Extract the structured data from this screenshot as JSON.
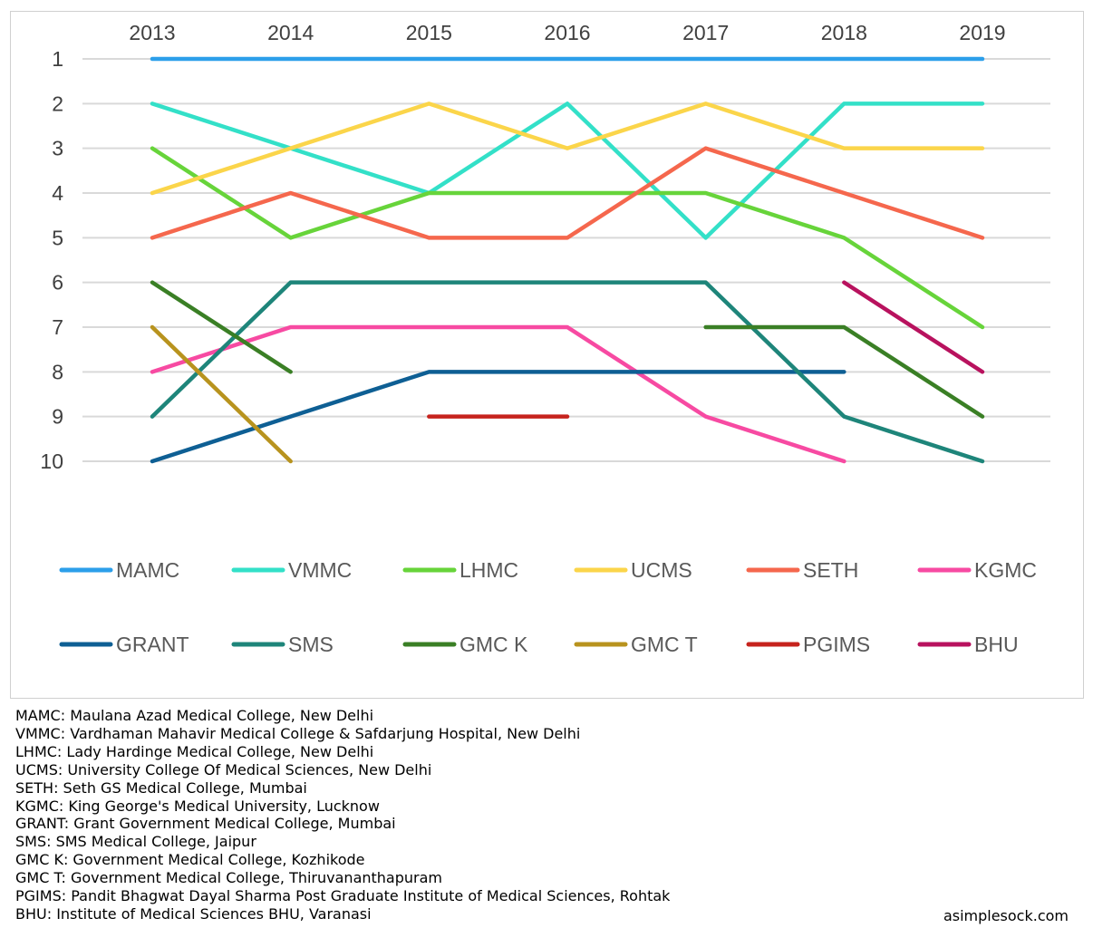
{
  "chart_data": {
    "type": "line",
    "title": "",
    "xlabel": "",
    "ylabel": "",
    "x": [
      "2013",
      "2014",
      "2015",
      "2016",
      "2017",
      "2018",
      "2019"
    ],
    "y_ticks": [
      "1",
      "2",
      "3",
      "4",
      "5",
      "6",
      "7",
      "8",
      "9",
      "10"
    ],
    "ylim": [
      1,
      10
    ],
    "y_inverted": true,
    "x_axis_position": "top",
    "grid": true,
    "legend_position": "bottom",
    "series": [
      {
        "name": "MAMC",
        "color": "#2c9fea",
        "values": [
          1,
          1,
          1,
          1,
          1,
          1,
          1
        ]
      },
      {
        "name": "VMMC",
        "color": "#33e0c8",
        "values": [
          2,
          3,
          4,
          2,
          5,
          2,
          2
        ]
      },
      {
        "name": "LHMC",
        "color": "#67d43a",
        "values": [
          3,
          5,
          4,
          4,
          4,
          5,
          7
        ]
      },
      {
        "name": "UCMS",
        "color": "#fbd54a",
        "values": [
          4,
          3,
          2,
          3,
          2,
          3,
          3
        ]
      },
      {
        "name": "SETH",
        "color": "#f5674d",
        "values": [
          5,
          4,
          5,
          5,
          3,
          4,
          5
        ]
      },
      {
        "name": "KGMC",
        "color": "#f74aa2",
        "values": [
          8,
          7,
          7,
          7,
          9,
          10,
          null
        ]
      },
      {
        "name": "GRANT",
        "color": "#0e5f94",
        "values": [
          10,
          9,
          8,
          8,
          8,
          8,
          null
        ]
      },
      {
        "name": "SMS",
        "color": "#1e857a",
        "values": [
          9,
          6,
          6,
          6,
          6,
          9,
          10
        ]
      },
      {
        "name": "GMC K",
        "color": "#3a7f25",
        "values": [
          6,
          8,
          null,
          null,
          7,
          7,
          9
        ]
      },
      {
        "name": "GMC T",
        "color": "#b8931e",
        "values": [
          7,
          10,
          null,
          null,
          null,
          null,
          null
        ]
      },
      {
        "name": "PGIMS",
        "color": "#c6231d",
        "values": [
          null,
          null,
          9,
          9,
          null,
          null,
          null
        ]
      },
      {
        "name": "BHU",
        "color": "#b8125e",
        "values": [
          null,
          null,
          null,
          null,
          null,
          6,
          8
        ]
      }
    ]
  },
  "footnotes": [
    "MAMC: Maulana Azad Medical College, New Delhi",
    "VMMC: Vardhaman Mahavir Medical College & Safdarjung Hospital, New Delhi",
    "LHMC: Lady Hardinge Medical College, New Delhi",
    "UCMS: University College Of Medical Sciences, New Delhi",
    "SETH: Seth GS Medical College, Mumbai",
    "KGMC: King George's Medical University, Lucknow",
    "GRANT: Grant Government Medical College, Mumbai",
    "SMS: SMS Medical College, Jaipur",
    "GMC K: Government Medical College, Kozhikode",
    "GMC T: Government Medical College, Thiruvananthapuram",
    "PGIMS: Pandit Bhagwat Dayal Sharma Post Graduate Institute of Medical Sciences, Rohtak",
    "BHU: Institute of Medical Sciences BHU, Varanasi"
  ],
  "credit": "asimplesock.com",
  "colors": {
    "grid": "#d9d9d9",
    "frame": "#d0d0d0"
  }
}
